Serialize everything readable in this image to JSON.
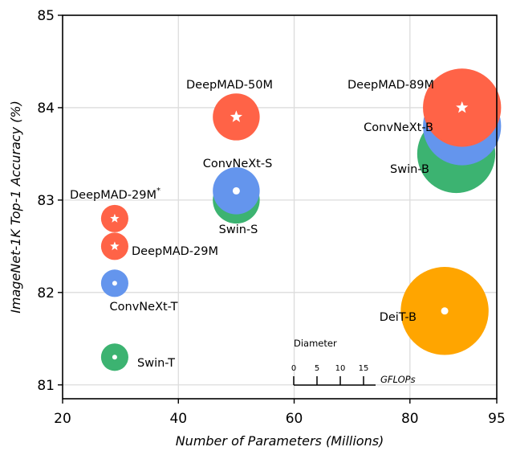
{
  "chart_data": {
    "type": "scatter",
    "subtype": "bubble",
    "title": "",
    "xlabel": "Number of Parameters (Millions)",
    "ylabel": "ImageNet-1K Top-1 Accuracy (%)",
    "xlim": [
      20,
      95
    ],
    "ylim": [
      80.85,
      85
    ],
    "xticks": [
      20,
      40,
      60,
      80,
      95
    ],
    "yticks": [
      81,
      82,
      83,
      84,
      85
    ],
    "grid": true,
    "size_encoding": "GFLOPs (bubble diameter)",
    "colors": {
      "DeepMAD": "#ff6347",
      "ConvNeXt": "#6495ed",
      "Swin": "#3cb371",
      "DeiT": "#ffa500"
    },
    "points": [
      {
        "name": "Swin-B",
        "family": "Swin",
        "x": 88,
        "y": 83.5,
        "gflops": 15.4,
        "label": "Swin-B",
        "marker": "dot"
      },
      {
        "name": "ConvNeXt-B",
        "family": "ConvNeXt",
        "x": 89,
        "y": 83.8,
        "gflops": 15.4,
        "label": "ConvNeXt-B",
        "marker": "dot"
      },
      {
        "name": "DeepMAD-89M",
        "family": "DeepMAD",
        "x": 89,
        "y": 84.0,
        "gflops": 15.4,
        "label": "DeepMAD-89M",
        "marker": "star"
      },
      {
        "name": "DeiT-B",
        "family": "DeiT",
        "x": 86,
        "y": 81.8,
        "gflops": 17.5,
        "label": "DeiT-B",
        "marker": "dot"
      },
      {
        "name": "Swin-S",
        "family": "Swin",
        "x": 50,
        "y": 83.0,
        "gflops": 8.7,
        "label": "Swin-S",
        "marker": "dot"
      },
      {
        "name": "ConvNeXt-S",
        "family": "ConvNeXt",
        "x": 50,
        "y": 83.1,
        "gflops": 8.7,
        "label": "ConvNeXt-S",
        "marker": "dot"
      },
      {
        "name": "DeepMAD-50M",
        "family": "DeepMAD",
        "x": 50,
        "y": 83.9,
        "gflops": 8.7,
        "label": "DeepMAD-50M",
        "marker": "star"
      },
      {
        "name": "Swin-T",
        "family": "Swin",
        "x": 29,
        "y": 81.3,
        "gflops": 4.5,
        "label": "Swin-T",
        "marker": "dot"
      },
      {
        "name": "ConvNeXt-T",
        "family": "ConvNeXt",
        "x": 29,
        "y": 82.1,
        "gflops": 4.5,
        "label": "ConvNeXt-T",
        "marker": "dot"
      },
      {
        "name": "DeepMAD-29M",
        "family": "DeepMAD",
        "x": 29,
        "y": 82.5,
        "gflops": 4.5,
        "label": "DeepMAD-29M",
        "marker": "star"
      },
      {
        "name": "DeepMAD-29M*",
        "family": "DeepMAD",
        "x": 29,
        "y": 82.8,
        "gflops": 4.5,
        "label": "DeepMAD-29M",
        "label_sup": "*",
        "marker": "star"
      }
    ],
    "legend": {
      "title": "Diameter",
      "unit": "GFLOPs",
      "ticks": [
        0,
        5,
        10,
        15
      ],
      "placement": "bottom-center"
    }
  }
}
